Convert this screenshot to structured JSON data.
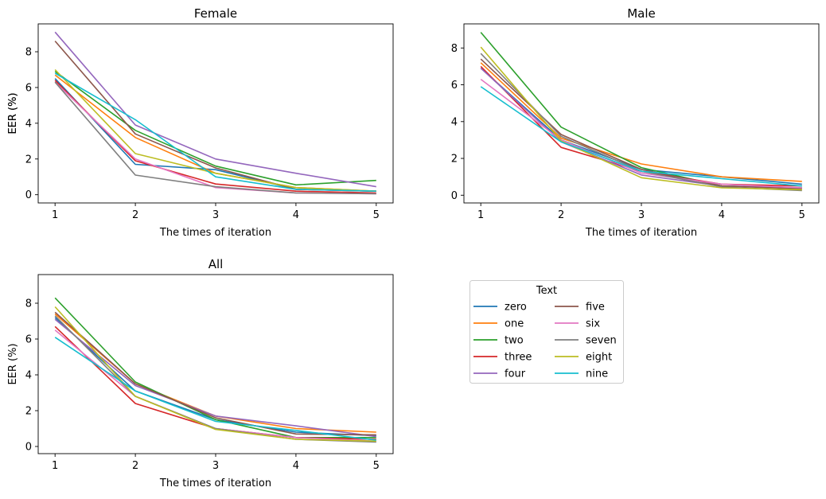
{
  "chart_data": [
    {
      "type": "line",
      "title": "Female",
      "xlabel": "The times of iteration",
      "ylabel": "EER (%)",
      "x": [
        1,
        2,
        3,
        4,
        5
      ],
      "xlim": [
        0.79,
        5.21
      ],
      "ylim": [
        -0.46,
        9.56
      ],
      "yticks": [
        0,
        2,
        4,
        6,
        8
      ],
      "series": [
        {
          "name": "zero",
          "values": [
            6.5,
            1.7,
            1.4,
            0.3,
            0.2
          ]
        },
        {
          "name": "one",
          "values": [
            6.7,
            3.2,
            1.2,
            0.4,
            0.2
          ]
        },
        {
          "name": "two",
          "values": [
            6.9,
            3.6,
            1.6,
            0.55,
            0.8
          ]
        },
        {
          "name": "three",
          "values": [
            6.4,
            1.9,
            0.6,
            0.2,
            0.1
          ]
        },
        {
          "name": "four",
          "values": [
            9.1,
            3.9,
            2.0,
            1.2,
            0.45
          ]
        },
        {
          "name": "five",
          "values": [
            8.6,
            3.4,
            1.5,
            0.3,
            0.2
          ]
        },
        {
          "name": "six",
          "values": [
            6.3,
            2.0,
            0.4,
            0.1,
            0.05
          ]
        },
        {
          "name": "seven",
          "values": [
            6.3,
            1.1,
            0.45,
            0.1,
            0.05
          ]
        },
        {
          "name": "eight",
          "values": [
            7.0,
            2.3,
            1.2,
            0.4,
            0.2
          ]
        },
        {
          "name": "nine",
          "values": [
            6.8,
            4.2,
            1.0,
            0.3,
            0.2
          ]
        }
      ]
    },
    {
      "type": "line",
      "title": "Male",
      "xlabel": "The times of iteration",
      "ylabel": "EER (%)",
      "x": [
        1,
        2,
        3,
        4,
        5
      ],
      "xlim": [
        0.79,
        5.21
      ],
      "ylim": [
        -0.42,
        9.31
      ],
      "yticks": [
        0,
        2,
        4,
        6,
        8
      ],
      "series": [
        {
          "name": "zero",
          "values": [
            6.9,
            3.0,
            1.4,
            1.0,
            0.6
          ]
        },
        {
          "name": "one",
          "values": [
            7.2,
            3.1,
            1.7,
            1.0,
            0.75
          ]
        },
        {
          "name": "two",
          "values": [
            8.85,
            3.7,
            1.5,
            0.5,
            0.4
          ]
        },
        {
          "name": "three",
          "values": [
            7.0,
            2.6,
            1.3,
            0.6,
            0.5
          ]
        },
        {
          "name": "four",
          "values": [
            6.9,
            2.9,
            1.1,
            0.5,
            0.4
          ]
        },
        {
          "name": "five",
          "values": [
            7.4,
            3.3,
            1.4,
            0.5,
            0.35
          ]
        },
        {
          "name": "six",
          "values": [
            6.3,
            3.0,
            1.2,
            0.6,
            0.4
          ]
        },
        {
          "name": "seven",
          "values": [
            7.7,
            3.2,
            1.3,
            0.45,
            0.25
          ]
        },
        {
          "name": "eight",
          "values": [
            8.05,
            2.95,
            0.95,
            0.4,
            0.3
          ]
        },
        {
          "name": "nine",
          "values": [
            5.9,
            2.9,
            1.3,
            0.9,
            0.5
          ]
        }
      ]
    },
    {
      "type": "line",
      "title": "All",
      "xlabel": "The times of iteration",
      "ylabel": "EER (%)",
      "x": [
        1,
        2,
        3,
        4,
        5
      ],
      "xlim": [
        0.79,
        5.21
      ],
      "ylim": [
        -0.4,
        9.6
      ],
      "yticks": [
        0,
        2,
        4,
        6,
        8
      ],
      "series": [
        {
          "name": "zero",
          "values": [
            7.2,
            3.1,
            1.5,
            0.8,
            0.6
          ]
        },
        {
          "name": "one",
          "values": [
            7.4,
            3.5,
            1.7,
            1.0,
            0.8
          ]
        },
        {
          "name": "two",
          "values": [
            8.3,
            3.6,
            1.5,
            0.5,
            0.5
          ]
        },
        {
          "name": "three",
          "values": [
            6.7,
            2.4,
            1.0,
            0.5,
            0.4
          ]
        },
        {
          "name": "four",
          "values": [
            7.1,
            3.4,
            1.7,
            1.15,
            0.55
          ]
        },
        {
          "name": "five",
          "values": [
            7.5,
            3.5,
            1.6,
            0.7,
            0.65
          ]
        },
        {
          "name": "six",
          "values": [
            6.5,
            2.8,
            1.0,
            0.5,
            0.3
          ]
        },
        {
          "name": "seven",
          "values": [
            7.3,
            2.8,
            1.0,
            0.4,
            0.25
          ]
        },
        {
          "name": "eight",
          "values": [
            7.8,
            2.8,
            0.95,
            0.4,
            0.3
          ]
        },
        {
          "name": "nine",
          "values": [
            6.1,
            3.1,
            1.4,
            0.9,
            0.35
          ]
        }
      ]
    }
  ],
  "legend": {
    "title": "Text",
    "location": "lower-right empty panel area",
    "columns": 2,
    "entries": [
      {
        "name": "zero",
        "color": "#1f77b4"
      },
      {
        "name": "one",
        "color": "#ff7f0e"
      },
      {
        "name": "two",
        "color": "#2ca02c"
      },
      {
        "name": "three",
        "color": "#d62728"
      },
      {
        "name": "four",
        "color": "#9467bd"
      },
      {
        "name": "five",
        "color": "#8c564b"
      },
      {
        "name": "six",
        "color": "#e377c2"
      },
      {
        "name": "seven",
        "color": "#7f7f7f"
      },
      {
        "name": "eight",
        "color": "#bcbd22"
      },
      {
        "name": "nine",
        "color": "#17becf"
      }
    ]
  }
}
